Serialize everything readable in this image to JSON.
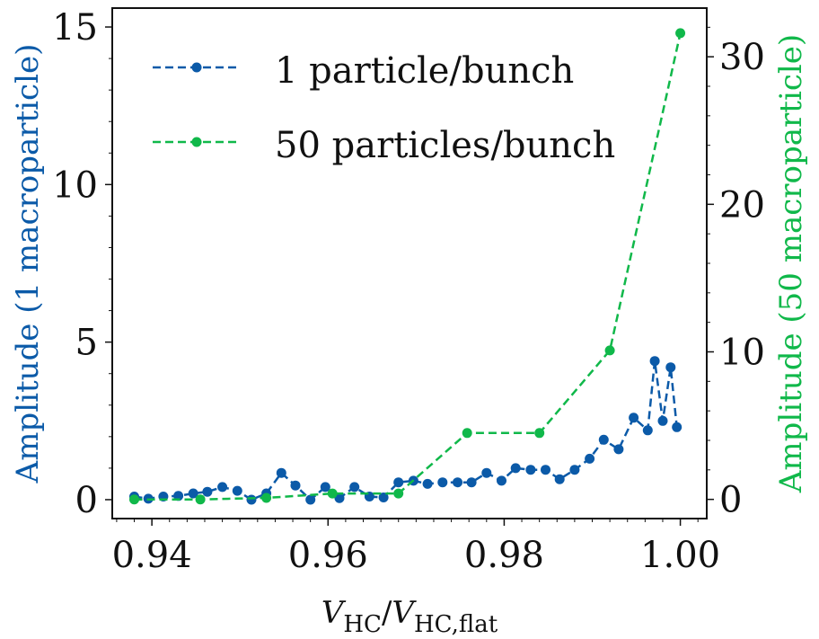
{
  "chart_data": {
    "type": "line",
    "xlabel": "V_HC/V_HC,flat",
    "xlabel_parts": {
      "main1": "V",
      "sub1": "HC",
      "slash": "/",
      "main2": "V",
      "sub2": "HC,flat"
    },
    "ylabel_left": "Amplitude (1 macroparticle)",
    "ylabel_right": "Amplitude (50 macroparticle)",
    "xlim": [
      0.9355,
      1.003
    ],
    "ylim_left": [
      -0.6,
      15.6
    ],
    "ylim_right": [
      -1.3,
      33.3
    ],
    "x_ticks": [
      0.94,
      0.96,
      0.98,
      1.0
    ],
    "x_tick_labels": [
      "0.94",
      "0.96",
      "0.98",
      "1.00"
    ],
    "y_ticks_left": [
      0,
      5,
      10,
      15
    ],
    "y_ticks_right": [
      0,
      10,
      20,
      30
    ],
    "grid": false,
    "legend_position": "top-left",
    "series": [
      {
        "name": "1 particle/bunch",
        "axis": "left",
        "color": "#0b5aa8",
        "line_style": "dashed",
        "x": [
          0.938,
          0.9396,
          0.9413,
          0.943,
          0.9447,
          0.9463,
          0.948,
          0.9497,
          0.9513,
          0.953,
          0.9547,
          0.9563,
          0.958,
          0.9597,
          0.9613,
          0.963,
          0.9647,
          0.9663,
          0.968,
          0.9697,
          0.9713,
          0.973,
          0.9747,
          0.9763,
          0.978,
          0.9797,
          0.9813,
          0.983,
          0.9847,
          0.9863,
          0.988,
          0.9897,
          0.9913,
          0.993,
          0.9947,
          0.9963,
          0.998,
          0.9996,
          0.9971,
          0.9989
        ],
        "y": [
          0.1,
          0.03,
          0.1,
          0.12,
          0.2,
          0.25,
          0.4,
          0.28,
          0.0,
          0.2,
          0.85,
          0.45,
          0.0,
          0.4,
          0.05,
          0.4,
          0.1,
          0.07,
          0.55,
          0.6,
          0.5,
          0.55,
          0.55,
          0.55,
          0.85,
          0.6,
          1.0,
          0.95,
          0.95,
          0.65,
          0.95,
          1.3,
          1.9,
          1.6,
          2.6,
          2.2,
          2.5,
          2.3,
          4.4,
          4.2
        ]
      },
      {
        "name": "50 particles/bunch",
        "axis": "right",
        "color": "#10b84a",
        "line_style": "dashed",
        "x": [
          0.938,
          0.9455,
          0.953,
          0.9605,
          0.968,
          0.9758,
          0.984,
          0.992,
          1.0
        ],
        "y": [
          0.0,
          0.0,
          0.1,
          0.4,
          0.4,
          4.5,
          4.5,
          10.1,
          31.6
        ]
      }
    ]
  }
}
